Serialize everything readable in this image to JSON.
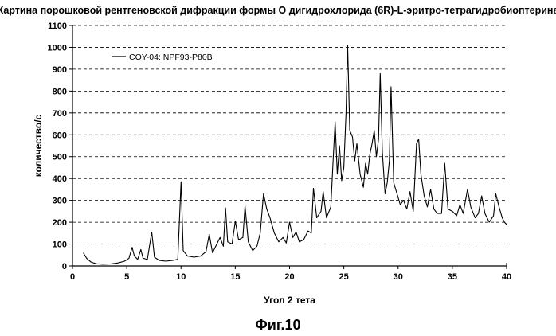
{
  "chart_data": {
    "type": "line",
    "title": "Картина порошковой рентгеновской дифракции формы O дигидрохлорида (6R)-L-эритро-тетрагидробиоптерина",
    "xlabel": "Угол 2 тета",
    "ylabel": "количество/с",
    "xlim": [
      0,
      40
    ],
    "ylim": [
      0,
      1100
    ],
    "xticks": [
      0,
      5,
      10,
      15,
      20,
      25,
      30,
      35,
      40
    ],
    "yticks": [
      0,
      100,
      200,
      300,
      400,
      500,
      600,
      700,
      800,
      900,
      1000,
      1100
    ],
    "grid": "horizontal dashed",
    "legend": "top-left",
    "caption": "Фиг.10",
    "series": [
      {
        "name": "COY-04: NPF93-P80B",
        "points": [
          [
            1.0,
            60
          ],
          [
            1.3,
            35
          ],
          [
            1.7,
            18
          ],
          [
            2.2,
            10
          ],
          [
            2.8,
            8
          ],
          [
            3.5,
            9
          ],
          [
            4.2,
            14
          ],
          [
            4.8,
            22
          ],
          [
            5.2,
            35
          ],
          [
            5.5,
            85
          ],
          [
            5.7,
            45
          ],
          [
            6.0,
            30
          ],
          [
            6.3,
            75
          ],
          [
            6.5,
            35
          ],
          [
            6.9,
            30
          ],
          [
            7.3,
            155
          ],
          [
            7.55,
            40
          ],
          [
            8.0,
            25
          ],
          [
            8.6,
            22
          ],
          [
            9.2,
            25
          ],
          [
            9.7,
            30
          ],
          [
            10.0,
            385
          ],
          [
            10.2,
            70
          ],
          [
            10.6,
            45
          ],
          [
            11.2,
            40
          ],
          [
            11.8,
            45
          ],
          [
            12.3,
            65
          ],
          [
            12.6,
            145
          ],
          [
            12.9,
            60
          ],
          [
            13.3,
            100
          ],
          [
            13.6,
            130
          ],
          [
            13.9,
            90
          ],
          [
            14.1,
            265
          ],
          [
            14.3,
            110
          ],
          [
            14.7,
            100
          ],
          [
            15.0,
            205
          ],
          [
            15.3,
            120
          ],
          [
            15.7,
            130
          ],
          [
            15.9,
            275
          ],
          [
            16.2,
            110
          ],
          [
            16.6,
            70
          ],
          [
            17.0,
            90
          ],
          [
            17.3,
            150
          ],
          [
            17.6,
            330
          ],
          [
            17.9,
            260
          ],
          [
            18.2,
            220
          ],
          [
            18.6,
            150
          ],
          [
            19.0,
            110
          ],
          [
            19.4,
            130
          ],
          [
            19.7,
            105
          ],
          [
            20.0,
            200
          ],
          [
            20.3,
            130
          ],
          [
            20.6,
            155
          ],
          [
            20.9,
            110
          ],
          [
            21.3,
            120
          ],
          [
            21.7,
            160
          ],
          [
            22.0,
            150
          ],
          [
            22.2,
            355
          ],
          [
            22.5,
            220
          ],
          [
            22.9,
            250
          ],
          [
            23.1,
            340
          ],
          [
            23.4,
            220
          ],
          [
            23.8,
            270
          ],
          [
            24.0,
            470
          ],
          [
            24.2,
            660
          ],
          [
            24.4,
            420
          ],
          [
            24.6,
            550
          ],
          [
            24.8,
            390
          ],
          [
            25.0,
            450
          ],
          [
            25.2,
            700
          ],
          [
            25.35,
            1010
          ],
          [
            25.55,
            620
          ],
          [
            25.8,
            590
          ],
          [
            26.0,
            480
          ],
          [
            26.2,
            560
          ],
          [
            26.5,
            420
          ],
          [
            26.8,
            360
          ],
          [
            27.0,
            470
          ],
          [
            27.2,
            420
          ],
          [
            27.4,
            510
          ],
          [
            27.6,
            560
          ],
          [
            27.8,
            620
          ],
          [
            28.0,
            500
          ],
          [
            28.2,
            580
          ],
          [
            28.35,
            880
          ],
          [
            28.55,
            520
          ],
          [
            28.8,
            330
          ],
          [
            29.0,
            380
          ],
          [
            29.2,
            480
          ],
          [
            29.35,
            820
          ],
          [
            29.6,
            380
          ],
          [
            29.9,
            330
          ],
          [
            30.2,
            280
          ],
          [
            30.5,
            300
          ],
          [
            30.8,
            260
          ],
          [
            31.1,
            340
          ],
          [
            31.4,
            250
          ],
          [
            31.7,
            560
          ],
          [
            31.9,
            580
          ],
          [
            32.1,
            420
          ],
          [
            32.4,
            320
          ],
          [
            32.7,
            270
          ],
          [
            33.0,
            350
          ],
          [
            33.3,
            260
          ],
          [
            33.6,
            240
          ],
          [
            34.0,
            240
          ],
          [
            34.3,
            470
          ],
          [
            34.6,
            260
          ],
          [
            35.0,
            250
          ],
          [
            35.4,
            230
          ],
          [
            35.7,
            280
          ],
          [
            36.0,
            240
          ],
          [
            36.4,
            350
          ],
          [
            36.7,
            270
          ],
          [
            37.1,
            220
          ],
          [
            37.4,
            240
          ],
          [
            37.7,
            320
          ],
          [
            38.0,
            240
          ],
          [
            38.4,
            200
          ],
          [
            38.8,
            230
          ],
          [
            39.0,
            330
          ],
          [
            39.3,
            270
          ],
          [
            39.6,
            220
          ],
          [
            39.8,
            200
          ],
          [
            40.0,
            190
          ]
        ]
      }
    ]
  }
}
